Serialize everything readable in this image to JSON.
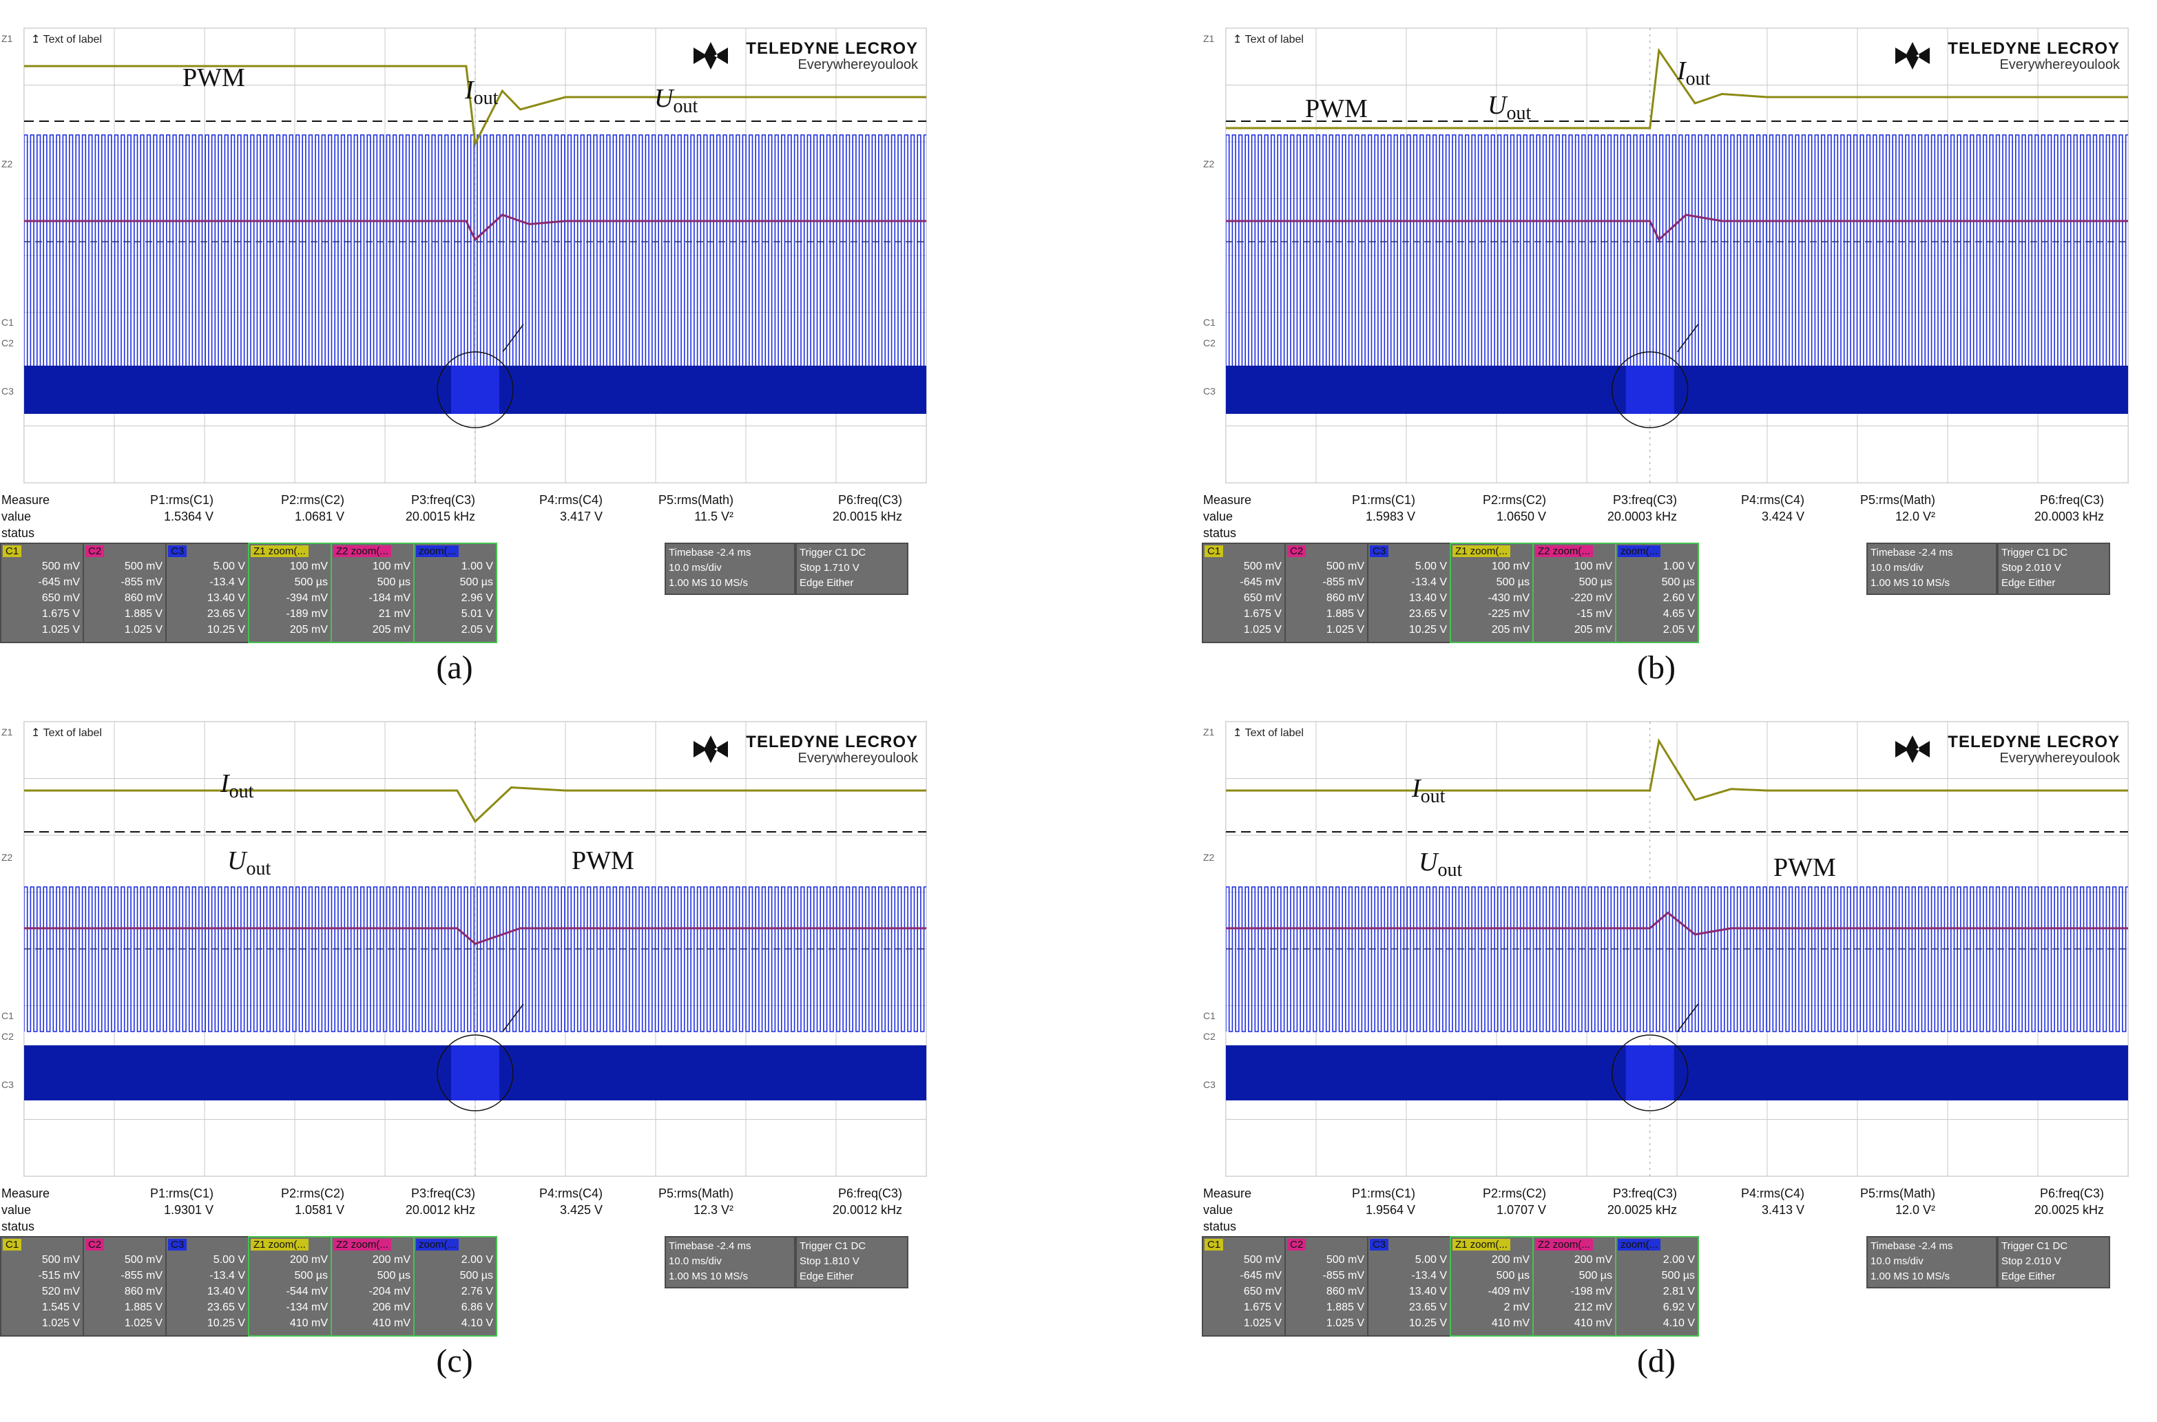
{
  "chart_data": [
    {
      "type": "line",
      "panel": "(a)",
      "title": "Text of label",
      "brand": {
        "name": "TELEDYNE LECROY",
        "tagline": "Everywhereyoulook"
      },
      "series": [
        {
          "name": "PWM",
          "values": [
            {
              "x": 0,
              "y": 0
            },
            {
              "x": 50,
              "y": 0
            },
            {
              "x": 100,
              "y": 0
            }
          ]
        },
        {
          "name": "Iout",
          "values": [
            {
              "x": 0,
              "y": 1.0
            },
            {
              "x": 49,
              "y": 1.0
            },
            {
              "x": 50,
              "y": -1.5
            },
            {
              "x": 53,
              "y": 0.2
            },
            {
              "x": 55,
              "y": -0.4
            },
            {
              "x": 60,
              "y": 0.0
            },
            {
              "x": 100,
              "y": 0.0
            }
          ]
        },
        {
          "name": "Uout",
          "values": [
            {
              "x": 0,
              "y": 0
            },
            {
              "x": 49,
              "y": 0
            },
            {
              "x": 50,
              "y": -0.6
            },
            {
              "x": 53,
              "y": 0.2
            },
            {
              "x": 56,
              "y": -0.1
            },
            {
              "x": 60,
              "y": 0
            },
            {
              "x": 100,
              "y": 0
            }
          ]
        }
      ],
      "annotations": [
        "PWM",
        "Iout",
        "Uout"
      ],
      "measure": {
        "headers": [
          "Measure",
          "P1:rms(C1)",
          "P2:rms(C2)",
          "P3:freq(C3)",
          "P4:rms(C4)",
          "P5:rms(Math)",
          "P6:freq(C3)"
        ],
        "value": [
          "value",
          "1.5364 V",
          "1.0681 V",
          "20.0015 kHz",
          "3.417 V",
          "11.5 V²",
          "20.0015 kHz"
        ],
        "status": "status"
      },
      "channels": [
        {
          "tag": "C1",
          "rows": [
            "500 mV",
            "-645 mV",
            "650 mV",
            "1.675 V",
            "1.025 V"
          ]
        },
        {
          "tag": "C2",
          "rows": [
            "500 mV",
            "-855 mV",
            "860 mV",
            "1.885 V",
            "1.025 V"
          ]
        },
        {
          "tag": "C3",
          "rows": [
            "5.00 V",
            "-13.4 V",
            "13.40 V",
            "23.65 V",
            "10.25 V"
          ]
        },
        {
          "tag": "Z1 zoom(...",
          "rows": [
            "100 mV",
            "500 µs",
            "-394 mV",
            "-189 mV",
            "205 mV"
          ]
        },
        {
          "tag": "Z2 zoom(...",
          "rows": [
            "100 mV",
            "500 µs",
            "-184 mV",
            "21 mV",
            "205 mV"
          ]
        },
        {
          "tag": "zoom(...",
          "rows": [
            "1.00 V",
            "500 µs",
            "2.96 V",
            "5.01 V",
            "2.05 V"
          ]
        }
      ],
      "timebase": {
        "label": "Timebase",
        "delay": "-2.4 ms",
        "div": "10.0 ms/div",
        "samples": "1.00 MS",
        "rate": "10 MS/s"
      },
      "trigger": {
        "label": "Trigger",
        "src": "C1 DC",
        "mode": "Stop",
        "level": "1.710 V",
        "type": "Edge",
        "slope": "Either"
      }
    },
    {
      "type": "line",
      "panel": "(b)",
      "title": "Text of label",
      "brand": {
        "name": "TELEDYNE LECROY",
        "tagline": "Everywhereyoulook"
      },
      "series": [
        {
          "name": "PWM",
          "values": [
            {
              "x": 0,
              "y": 0
            },
            {
              "x": 100,
              "y": 0
            }
          ]
        },
        {
          "name": "Iout",
          "values": [
            {
              "x": 0,
              "y": -1.0
            },
            {
              "x": 47,
              "y": -1.0
            },
            {
              "x": 48,
              "y": 1.5
            },
            {
              "x": 52,
              "y": -0.2
            },
            {
              "x": 55,
              "y": 0.1
            },
            {
              "x": 60,
              "y": 0
            },
            {
              "x": 100,
              "y": 0
            }
          ]
        },
        {
          "name": "Uout",
          "values": [
            {
              "x": 0,
              "y": 0
            },
            {
              "x": 47,
              "y": 0
            },
            {
              "x": 48,
              "y": -0.6
            },
            {
              "x": 51,
              "y": 0.2
            },
            {
              "x": 55,
              "y": 0
            },
            {
              "x": 100,
              "y": 0
            }
          ]
        }
      ],
      "annotations": [
        "PWM",
        "Uout",
        "Iout"
      ],
      "measure": {
        "headers": [
          "Measure",
          "P1:rms(C1)",
          "P2:rms(C2)",
          "P3:freq(C3)",
          "P4:rms(C4)",
          "P5:rms(Math)",
          "P6:freq(C3)"
        ],
        "value": [
          "value",
          "1.5983 V",
          "1.0650 V",
          "20.0003 kHz",
          "3.424 V",
          "12.0 V²",
          "20.0003 kHz"
        ],
        "status": "status"
      },
      "channels": [
        {
          "tag": "C1",
          "rows": [
            "500 mV",
            "-645 mV",
            "650 mV",
            "1.675 V",
            "1.025 V"
          ]
        },
        {
          "tag": "C2",
          "rows": [
            "500 mV",
            "-855 mV",
            "860 mV",
            "1.885 V",
            "1.025 V"
          ]
        },
        {
          "tag": "C3",
          "rows": [
            "5.00 V",
            "-13.4 V",
            "13.40 V",
            "23.65 V",
            "10.25 V"
          ]
        },
        {
          "tag": "Z1 zoom(...",
          "rows": [
            "100 mV",
            "500 µs",
            "-430 mV",
            "-225 mV",
            "205 mV"
          ]
        },
        {
          "tag": "Z2 zoom(...",
          "rows": [
            "100 mV",
            "500 µs",
            "-220 mV",
            "-15 mV",
            "205 mV"
          ]
        },
        {
          "tag": "zoom(...",
          "rows": [
            "1.00 V",
            "500 µs",
            "2.60 V",
            "4.65 V",
            "2.05 V"
          ]
        }
      ],
      "timebase": {
        "label": "Timebase",
        "delay": "-2.4 ms",
        "div": "10.0 ms/div",
        "samples": "1.00 MS",
        "rate": "10 MS/s"
      },
      "trigger": {
        "label": "Trigger",
        "src": "C1 DC",
        "mode": "Stop",
        "level": "2.010 V",
        "type": "Edge",
        "slope": "Either"
      }
    },
    {
      "type": "line",
      "panel": "(c)",
      "title": "Text of label",
      "brand": {
        "name": "TELEDYNE LECROY",
        "tagline": "Everywhereyoulook"
      },
      "series": [
        {
          "name": "PWM",
          "values": [
            {
              "x": 0,
              "y": 0
            },
            {
              "x": 100,
              "y": 0
            }
          ]
        },
        {
          "name": "Iout",
          "values": [
            {
              "x": 0,
              "y": 0
            },
            {
              "x": 48,
              "y": 0
            },
            {
              "x": 50,
              "y": -1.0
            },
            {
              "x": 54,
              "y": 0.1
            },
            {
              "x": 60,
              "y": 0
            },
            {
              "x": 100,
              "y": 0
            }
          ]
        },
        {
          "name": "Uout",
          "values": [
            {
              "x": 0,
              "y": 0
            },
            {
              "x": 48,
              "y": 0
            },
            {
              "x": 50,
              "y": -0.5
            },
            {
              "x": 55,
              "y": 0
            },
            {
              "x": 100,
              "y": 0
            }
          ]
        }
      ],
      "annotations": [
        "Iout",
        "Uout",
        "PWM"
      ],
      "measure": {
        "headers": [
          "Measure",
          "P1:rms(C1)",
          "P2:rms(C2)",
          "P3:freq(C3)",
          "P4:rms(C4)",
          "P5:rms(Math)",
          "P6:freq(C3)"
        ],
        "value": [
          "value",
          "1.9301 V",
          "1.0581 V",
          "20.0012 kHz",
          "3.425 V",
          "12.3 V²",
          "20.0012 kHz"
        ],
        "status": "status"
      },
      "channels": [
        {
          "tag": "C1",
          "rows": [
            "500 mV",
            "-515 mV",
            "520 mV",
            "1.545 V",
            "1.025 V"
          ]
        },
        {
          "tag": "C2",
          "rows": [
            "500 mV",
            "-855 mV",
            "860 mV",
            "1.885 V",
            "1.025 V"
          ]
        },
        {
          "tag": "C3",
          "rows": [
            "5.00 V",
            "-13.4 V",
            "13.40 V",
            "23.65 V",
            "10.25 V"
          ]
        },
        {
          "tag": "Z1 zoom(...",
          "rows": [
            "200 mV",
            "500 µs",
            "-544 mV",
            "-134 mV",
            "410 mV"
          ]
        },
        {
          "tag": "Z2 zoom(...",
          "rows": [
            "200 mV",
            "500 µs",
            "-204 mV",
            "206 mV",
            "410 mV"
          ]
        },
        {
          "tag": "zoom(...",
          "rows": [
            "2.00 V",
            "500 µs",
            "2.76 V",
            "6.86 V",
            "4.10 V"
          ]
        }
      ],
      "timebase": {
        "label": "Timebase",
        "delay": "-2.4 ms",
        "div": "10.0 ms/div",
        "samples": "1.00 MS",
        "rate": "10 MS/s"
      },
      "trigger": {
        "label": "Trigger",
        "src": "C1 DC",
        "mode": "Stop",
        "level": "1.810 V",
        "type": "Edge",
        "slope": "Either"
      }
    },
    {
      "type": "line",
      "panel": "(d)",
      "title": "Text of label",
      "brand": {
        "name": "TELEDYNE LECROY",
        "tagline": "Everywhereyoulook"
      },
      "series": [
        {
          "name": "PWM",
          "values": [
            {
              "x": 0,
              "y": 0
            },
            {
              "x": 100,
              "y": 0
            }
          ]
        },
        {
          "name": "Iout",
          "values": [
            {
              "x": 0,
              "y": 0
            },
            {
              "x": 47,
              "y": 0
            },
            {
              "x": 48,
              "y": 1.6
            },
            {
              "x": 52,
              "y": -0.3
            },
            {
              "x": 56,
              "y": 0.05
            },
            {
              "x": 60,
              "y": 0
            },
            {
              "x": 100,
              "y": 0
            }
          ]
        },
        {
          "name": "Uout",
          "values": [
            {
              "x": 0,
              "y": 0
            },
            {
              "x": 47,
              "y": 0
            },
            {
              "x": 49,
              "y": 0.5
            },
            {
              "x": 52,
              "y": -0.2
            },
            {
              "x": 56,
              "y": 0
            },
            {
              "x": 100,
              "y": 0
            }
          ]
        }
      ],
      "annotations": [
        "Iout",
        "Uout",
        "PWM"
      ],
      "measure": {
        "headers": [
          "Measure",
          "P1:rms(C1)",
          "P2:rms(C2)",
          "P3:freq(C3)",
          "P4:rms(C4)",
          "P5:rms(Math)",
          "P6:freq(C3)"
        ],
        "value": [
          "value",
          "1.9564 V",
          "1.0707 V",
          "20.0025 kHz",
          "3.413 V",
          "12.0 V²",
          "20.0025 kHz"
        ],
        "status": "status"
      },
      "channels": [
        {
          "tag": "C1",
          "rows": [
            "500 mV",
            "-645 mV",
            "650 mV",
            "1.675 V",
            "1.025 V"
          ]
        },
        {
          "tag": "C2",
          "rows": [
            "500 mV",
            "-855 mV",
            "860 mV",
            "1.885 V",
            "1.025 V"
          ]
        },
        {
          "tag": "C3",
          "rows": [
            "5.00 V",
            "-13.4 V",
            "13.40 V",
            "23.65 V",
            "10.25 V"
          ]
        },
        {
          "tag": "Z1 zoom(...",
          "rows": [
            "200 mV",
            "500 µs",
            "-409 mV",
            "2 mV",
            "410 mV"
          ]
        },
        {
          "tag": "Z2 zoom(...",
          "rows": [
            "200 mV",
            "500 µs",
            "-198 mV",
            "212 mV",
            "410 mV"
          ]
        },
        {
          "tag": "zoom(...",
          "rows": [
            "2.00 V",
            "500 µs",
            "2.81 V",
            "6.92 V",
            "4.10 V"
          ]
        }
      ],
      "timebase": {
        "label": "Timebase",
        "delay": "-2.4 ms",
        "div": "10.0 ms/div",
        "samples": "1.00 MS",
        "rate": "10 MS/s"
      },
      "trigger": {
        "label": "Trigger",
        "src": "C1 DC",
        "mode": "Stop",
        "level": "2.010 V",
        "type": "Edge",
        "slope": "Either"
      }
    }
  ],
  "colors": {
    "pwm": "#1d2ce0",
    "pwm_dark": "#0a1aa8",
    "iout": "#8c8a12",
    "uout": "#8a2a6e",
    "grid": "#c8c8c8",
    "panel_bg": "#6e6e6e",
    "zoom_border": "#45c250"
  }
}
